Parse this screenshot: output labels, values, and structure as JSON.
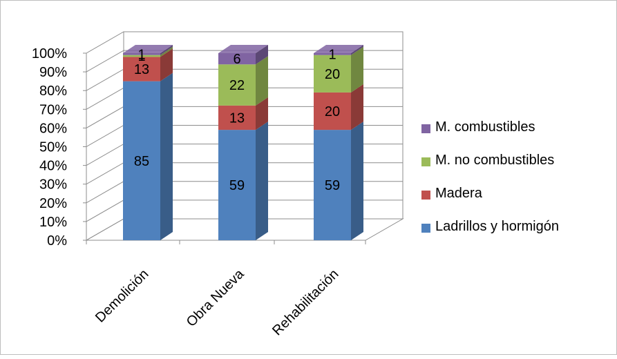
{
  "chart_data": {
    "type": "bar",
    "stacked": true,
    "percent": true,
    "three_d": true,
    "categories": [
      "Demolición",
      "Obra Nueva",
      "Rehabilitación"
    ],
    "series": [
      {
        "name": "Ladrillos y hormigón",
        "values": [
          85,
          59,
          59
        ],
        "color": "#4F81BD"
      },
      {
        "name": "Madera",
        "values": [
          13,
          13,
          20
        ],
        "color": "#C0504D"
      },
      {
        "name": "M. no combustibles",
        "values": [
          1,
          22,
          20
        ],
        "color": "#9BBB59"
      },
      {
        "name": "M. combustibles",
        "values": [
          1,
          6,
          1
        ],
        "color": "#8064A2"
      }
    ],
    "yticks": [
      "0%",
      "10%",
      "20%",
      "30%",
      "40%",
      "50%",
      "60%",
      "70%",
      "80%",
      "90%",
      "100%"
    ],
    "ylim": [
      0,
      100
    ],
    "grid": true,
    "legend_position": "right",
    "legend_order": [
      "M. combustibles",
      "M. no combustibles",
      "Madera",
      "Ladrillos y hormigón"
    ]
  }
}
